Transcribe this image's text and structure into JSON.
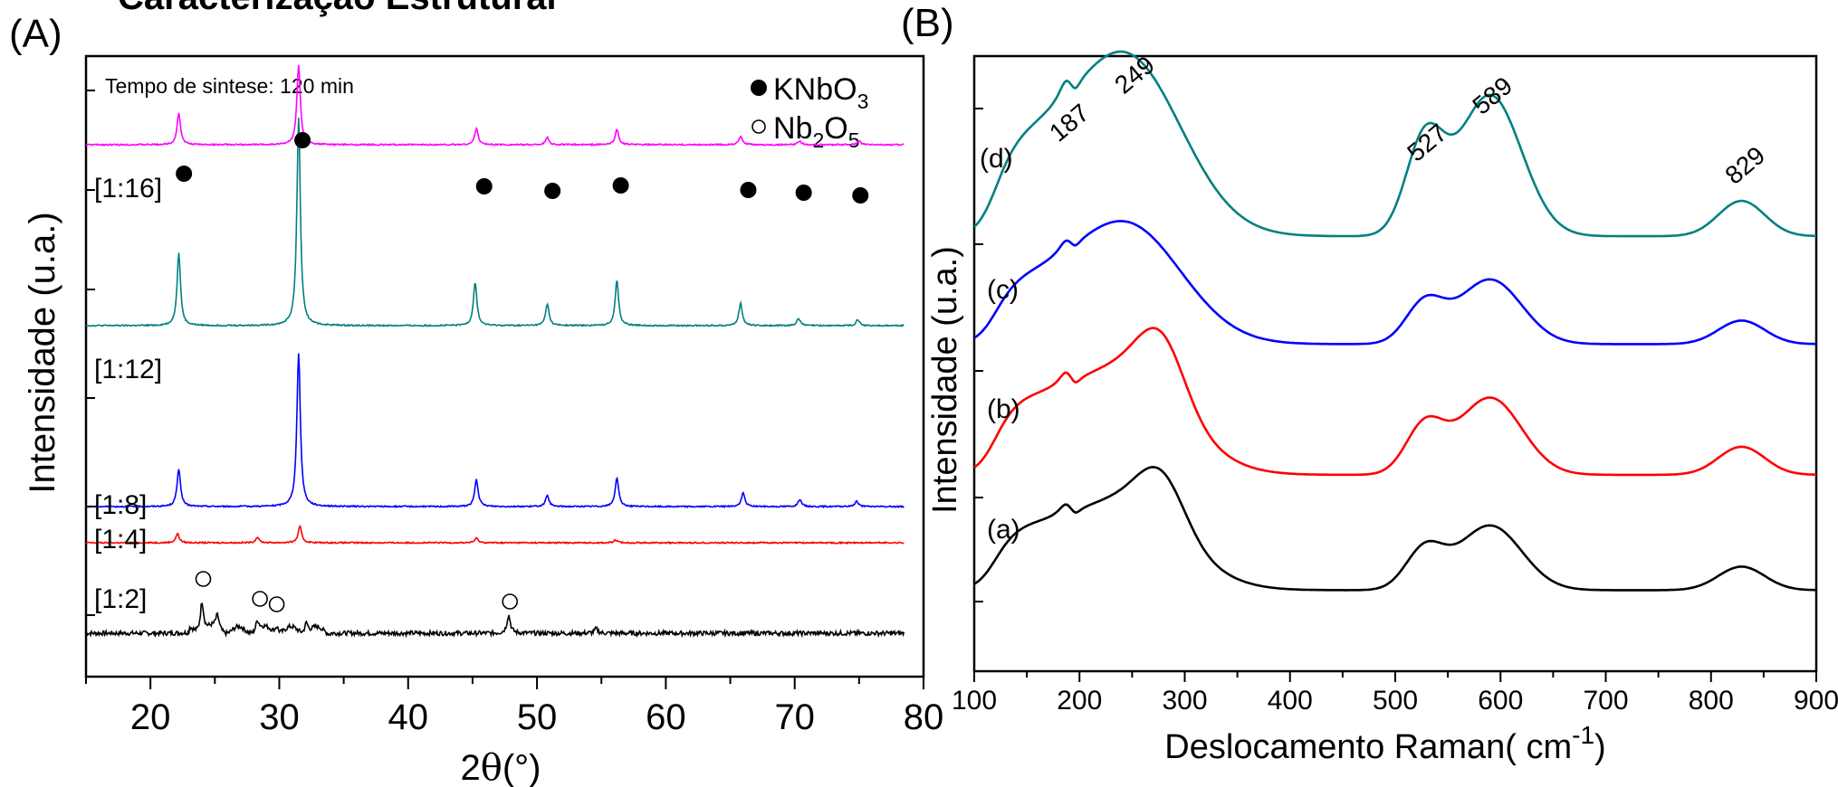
{
  "figure": {
    "clipped_title": "Caracterização Estrutural"
  },
  "panel_a": {
    "panel_label": "(A)",
    "annotation": "Tempo de sintese: 120 min",
    "xlabel_base": "2",
    "xlabel_theta": "θ",
    "xlabel_unit": "(°)",
    "ylabel": "Intensidade (u.a.)",
    "legend": [
      {
        "marker": "filled-circle",
        "base": "KNbO",
        "sub": "3",
        "rest": ""
      },
      {
        "marker": "open-circle",
        "base": "Nb",
        "sub": "2",
        "rest": "O",
        "sub2": "5"
      }
    ]
  },
  "panel_b": {
    "panel_label": "(B)",
    "xlabel": "Deslocamento Raman(  cm",
    "xlabel_sup": "-1",
    "xlabel_end": ")",
    "ylabel": "Intensidade (u.a.)"
  },
  "chart_data": [
    {
      "type": "line",
      "panel": "A",
      "xlim": [
        15,
        80
      ],
      "xticks": [
        20,
        30,
        40,
        50,
        60,
        70,
        80
      ],
      "y_ticks_labeled": false,
      "series": [
        {
          "label": "[1:2]",
          "color": "#000000",
          "offset": 0.0,
          "peaks": [
            [
              24.0,
              0.35
            ],
            [
              25.2,
              0.15
            ],
            [
              28.3,
              0.12
            ],
            [
              29.8,
              0.08
            ],
            [
              32.1,
              0.12
            ],
            [
              47.8,
              0.2
            ],
            [
              54.6,
              0.05
            ]
          ]
        },
        {
          "label": "[1:4]",
          "color": "#ff0000",
          "offset": 1.0,
          "peaks": [
            [
              22.1,
              0.1
            ],
            [
              28.3,
              0.06
            ],
            [
              31.6,
              0.18
            ],
            [
              45.3,
              0.05
            ],
            [
              56.1,
              0.03
            ]
          ]
        },
        {
          "label": "[1:8]",
          "color": "#0000ff",
          "offset": 1.4,
          "peaks": [
            [
              22.2,
              0.42
            ],
            [
              31.5,
              1.7
            ],
            [
              45.3,
              0.3
            ],
            [
              50.8,
              0.12
            ],
            [
              56.2,
              0.32
            ],
            [
              66.0,
              0.15
            ],
            [
              70.4,
              0.08
            ],
            [
              74.8,
              0.06
            ]
          ]
        },
        {
          "label": "[1:12]",
          "color": "#008080",
          "offset": 3.4,
          "peaks": [
            [
              22.2,
              0.8
            ],
            [
              31.5,
              2.3
            ],
            [
              45.2,
              0.48
            ],
            [
              50.8,
              0.24
            ],
            [
              56.2,
              0.5
            ],
            [
              65.8,
              0.25
            ],
            [
              70.3,
              0.08
            ],
            [
              74.9,
              0.07
            ]
          ]
        },
        {
          "label": "[1:16]",
          "color": "#ff00ff",
          "offset": 5.4,
          "peaks": [
            [
              22.2,
              0.35
            ],
            [
              31.5,
              0.88
            ],
            [
              45.3,
              0.18
            ],
            [
              50.8,
              0.08
            ],
            [
              56.2,
              0.17
            ],
            [
              65.8,
              0.09
            ],
            [
              70.4,
              0.04
            ],
            [
              75.0,
              0.04
            ]
          ]
        }
      ],
      "markers_filled": [
        22.6,
        31.8,
        45.9,
        51.2,
        56.5,
        66.4,
        70.7,
        75.1
      ],
      "markers_open": [
        24.1,
        28.5,
        29.8,
        47.9
      ]
    },
    {
      "type": "line",
      "panel": "B",
      "xlim": [
        100,
        900
      ],
      "xticks": [
        100,
        200,
        300,
        400,
        500,
        600,
        700,
        800,
        900
      ],
      "y_ticks_labeled": false,
      "series": [
        {
          "label": "(a)",
          "color": "#000000",
          "offset": 0.0,
          "variant": "a"
        },
        {
          "label": "(b)",
          "color": "#ff0000",
          "offset": 1.0,
          "variant": "b"
        },
        {
          "label": "(c)",
          "color": "#0000ff",
          "offset": 2.0,
          "variant": "c"
        },
        {
          "label": "(d)",
          "color": "#008080",
          "offset": 3.0,
          "variant": "d"
        }
      ],
      "peak_labels": [
        {
          "x": 187,
          "text": "187"
        },
        {
          "x": 249,
          "text": "249"
        },
        {
          "x": 527,
          "text": "527"
        },
        {
          "x": 589,
          "text": "589"
        },
        {
          "x": 829,
          "text": "829"
        }
      ]
    }
  ]
}
